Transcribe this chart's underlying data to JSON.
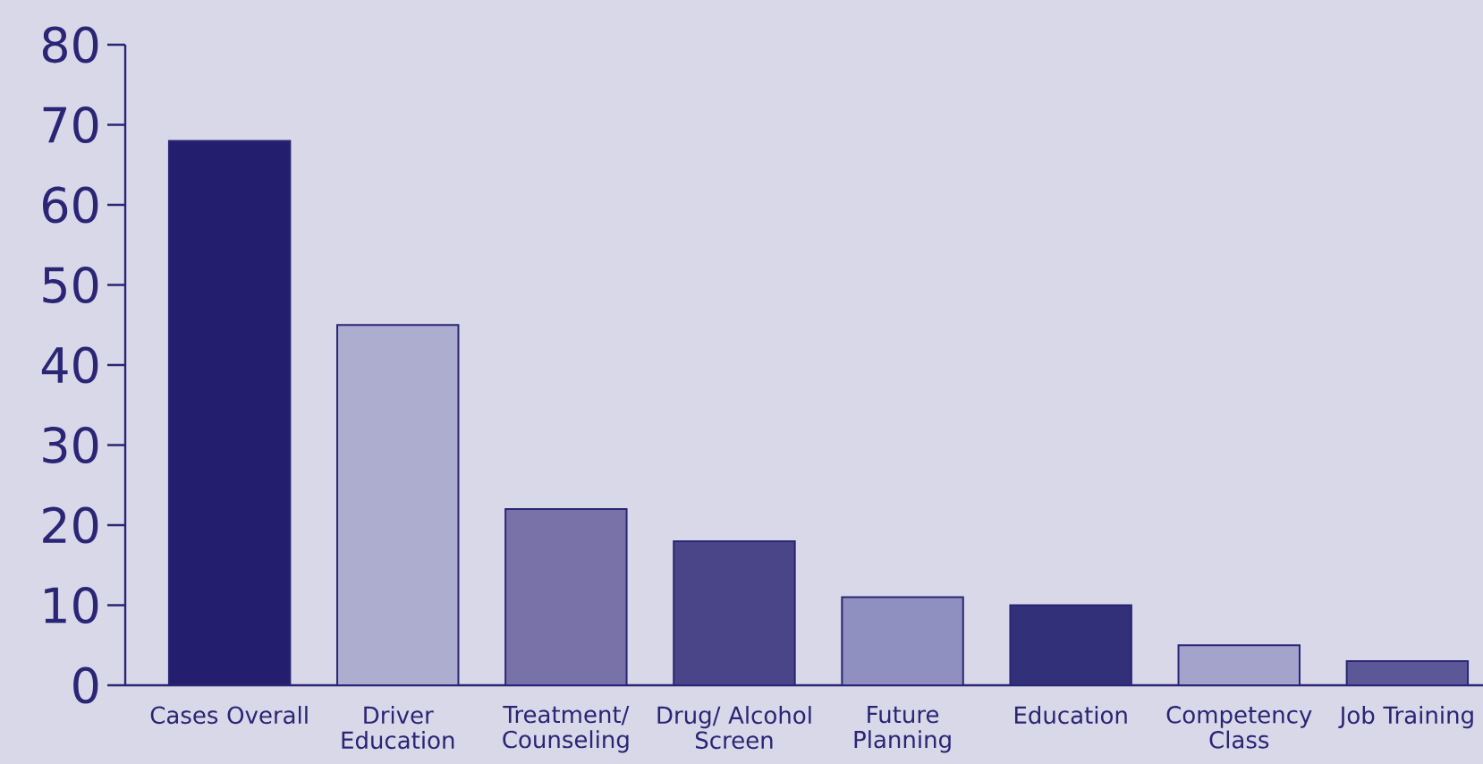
{
  "chart_data": {
    "type": "bar",
    "categories": [
      "Cases Overall",
      "Driver Education",
      "Treatment/ Counseling",
      "Drug/ Alcohol Screen",
      "Future Planning",
      "Education",
      "Competency Class",
      "Job Training"
    ],
    "values": [
      68,
      45,
      22,
      18,
      11,
      10,
      5,
      3
    ],
    "colors": [
      "#231f6e",
      "#adadd0",
      "#7872a8",
      "#4a4588",
      "#9090c0",
      "#33307a",
      "#a3a3cc",
      "#5c5898"
    ],
    "ylim": [
      0,
      80
    ],
    "yticks": [
      0,
      10,
      20,
      30,
      40,
      50,
      60,
      70,
      80
    ]
  }
}
